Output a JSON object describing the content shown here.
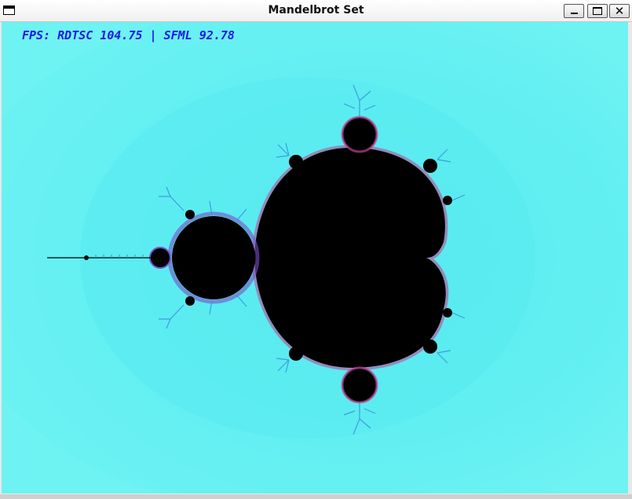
{
  "window": {
    "title": "Mandelbrot Set",
    "controls": {
      "minimize": "minimize-icon",
      "maximize": "maximize-icon",
      "close_glyph": "✕"
    }
  },
  "overlay": {
    "fps_text": "FPS: RDTSC 104.75 | SFML 92.78"
  },
  "render": {
    "set_color": "#000000",
    "background_color": "#6ff0f0",
    "halo_color": "#4fe6ee",
    "edge_colors": [
      "#3aa6e8",
      "#7a4fc8",
      "#c04090"
    ],
    "text_color": "#1a1ae6"
  }
}
